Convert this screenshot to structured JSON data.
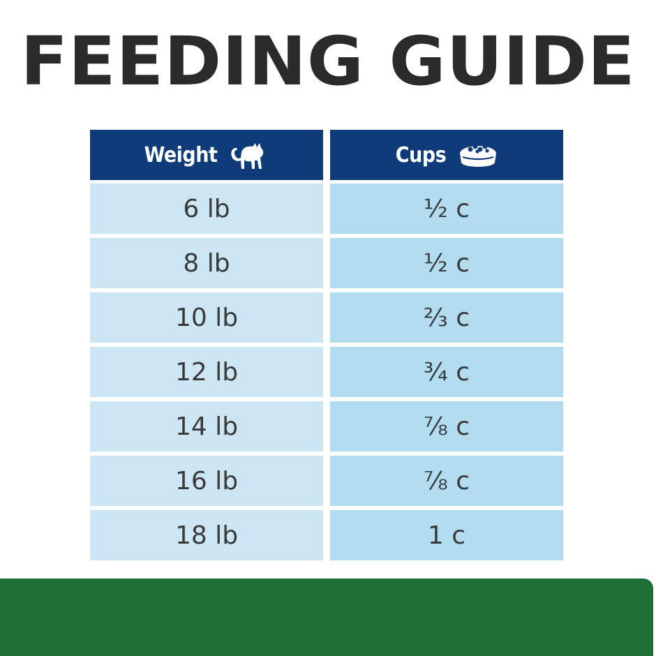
{
  "title": "FEEDING GUIDE",
  "header": {
    "weight_label": "Weight",
    "weight_icon": "cat-icon",
    "cups_label": "Cups",
    "cups_icon": "food-bowl-icon"
  },
  "rows": [
    {
      "weight": "6 lb",
      "cups": "½ c"
    },
    {
      "weight": "8 lb",
      "cups": "½ c"
    },
    {
      "weight": "10 lb",
      "cups": "⅔ c"
    },
    {
      "weight": "12 lb",
      "cups": "¾ c"
    },
    {
      "weight": "14 lb",
      "cups": "⅞ c"
    },
    {
      "weight": "16 lb",
      "cups": "⅞ c"
    },
    {
      "weight": "18 lb",
      "cups": "1 c"
    }
  ],
  "colors": {
    "title": "#2b2b2b",
    "header_bg": "#0f3b7a",
    "weight_cell_bg": "#cde6f3",
    "cups_cell_bg": "#b2dcef",
    "footer_bar": "#1f6e35"
  }
}
